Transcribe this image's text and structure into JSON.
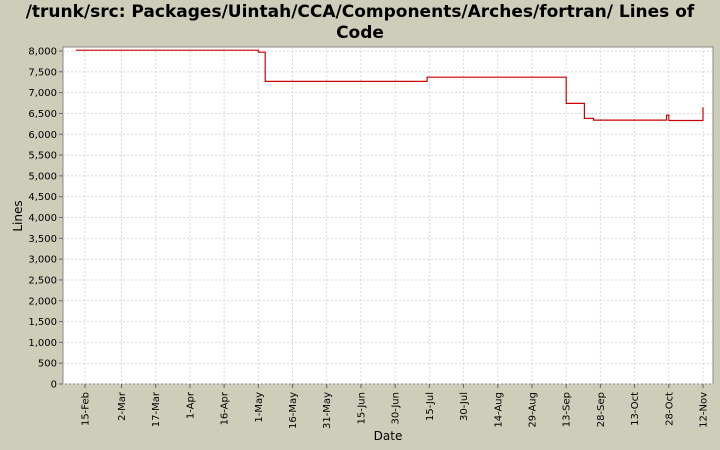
{
  "chart_data": {
    "type": "line",
    "title": "/trunk/src: Packages/Uintah/CCA/Components/Arches/fortran/ Lines of Code",
    "xlabel": "Date",
    "ylabel": "Lines",
    "ylim": [
      0,
      8000
    ],
    "y_ticks": [
      "0",
      "500",
      "1,000",
      "1,500",
      "2,000",
      "2,500",
      "3,000",
      "3,500",
      "4,000",
      "4,500",
      "5,000",
      "5,500",
      "6,000",
      "6,500",
      "7,000",
      "7,500",
      "8,000"
    ],
    "x_ticks": [
      "15-Feb",
      "2-Mar",
      "17-Mar",
      "1-Apr",
      "16-Apr",
      "1-May",
      "16-May",
      "31-May",
      "15-Jun",
      "30-Jun",
      "15-Jul",
      "30-Jul",
      "14-Aug",
      "29-Aug",
      "13-Sep",
      "28-Sep",
      "13-Oct",
      "28-Oct",
      "12-Nov"
    ],
    "grid": true,
    "colors": {
      "series": "#cc0000",
      "plot_bg": "#ffffff",
      "grid": "#d8d8d8",
      "page_bg": "#cdcdb9"
    },
    "series": [
      {
        "x": [
          "11-Feb",
          "1-May",
          "1-May",
          "4-May",
          "4-May",
          "14-Jul",
          "14-Jul",
          "13-Sep",
          "13-Sep",
          "21-Sep",
          "21-Sep",
          "25-Sep",
          "25-Sep",
          "27-Oct",
          "27-Oct",
          "28-Oct",
          "28-Oct",
          "12-Nov",
          "12-Nov"
        ],
        "y": [
          8020,
          8020,
          7970,
          7970,
          7270,
          7270,
          7370,
          7370,
          6740,
          6740,
          6380,
          6380,
          6340,
          6340,
          6460,
          6460,
          6330,
          6330,
          6650
        ]
      }
    ]
  }
}
